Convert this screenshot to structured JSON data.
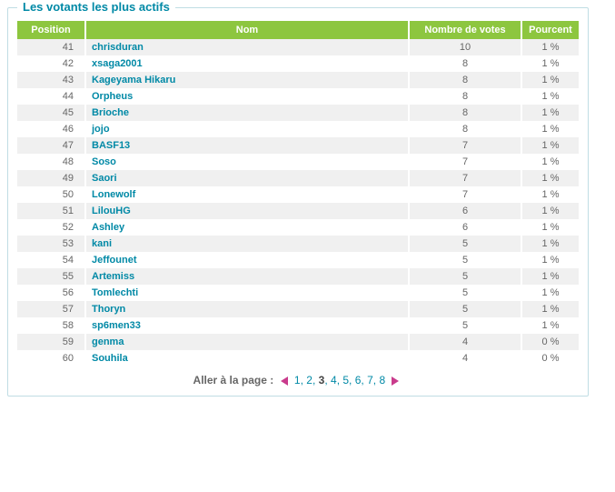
{
  "panel": {
    "title": "Les votants les plus actifs"
  },
  "table": {
    "headers": {
      "position": "Position",
      "name": "Nom",
      "votes": "Nombre de votes",
      "percent": "Pourcent"
    },
    "rows": [
      {
        "pos": "41",
        "name": "chrisduran",
        "votes": "10",
        "pct": "1 %"
      },
      {
        "pos": "42",
        "name": "xsaga2001",
        "votes": "8",
        "pct": "1 %"
      },
      {
        "pos": "43",
        "name": "Kageyama Hikaru",
        "votes": "8",
        "pct": "1 %"
      },
      {
        "pos": "44",
        "name": "Orpheus",
        "votes": "8",
        "pct": "1 %"
      },
      {
        "pos": "45",
        "name": "Brioche",
        "votes": "8",
        "pct": "1 %"
      },
      {
        "pos": "46",
        "name": "jojo",
        "votes": "8",
        "pct": "1 %"
      },
      {
        "pos": "47",
        "name": "BASF13",
        "votes": "7",
        "pct": "1 %"
      },
      {
        "pos": "48",
        "name": "Soso",
        "votes": "7",
        "pct": "1 %"
      },
      {
        "pos": "49",
        "name": "Saori",
        "votes": "7",
        "pct": "1 %"
      },
      {
        "pos": "50",
        "name": "Lonewolf",
        "votes": "7",
        "pct": "1 %"
      },
      {
        "pos": "51",
        "name": "LilouHG",
        "votes": "6",
        "pct": "1 %"
      },
      {
        "pos": "52",
        "name": "Ashley",
        "votes": "6",
        "pct": "1 %"
      },
      {
        "pos": "53",
        "name": "kani",
        "votes": "5",
        "pct": "1 %"
      },
      {
        "pos": "54",
        "name": "Jeffounet",
        "votes": "5",
        "pct": "1 %"
      },
      {
        "pos": "55",
        "name": "Artemiss",
        "votes": "5",
        "pct": "1 %"
      },
      {
        "pos": "56",
        "name": "Tomlechti",
        "votes": "5",
        "pct": "1 %"
      },
      {
        "pos": "57",
        "name": "Thoryn",
        "votes": "5",
        "pct": "1 %"
      },
      {
        "pos": "58",
        "name": "sp6men33",
        "votes": "5",
        "pct": "1 %"
      },
      {
        "pos": "59",
        "name": "genma",
        "votes": "4",
        "pct": "0 %"
      },
      {
        "pos": "60",
        "name": "Souhila",
        "votes": "4",
        "pct": "0 %"
      }
    ]
  },
  "pager": {
    "label": "Aller à la page :",
    "pages": [
      "1",
      "2",
      "3",
      "4",
      "5",
      "6",
      "7",
      "8"
    ],
    "current": "3"
  },
  "colors": {
    "header_bg": "#8dc63f",
    "link": "#0089a6",
    "border": "#c0dde4",
    "arrow": "#c93b8c"
  }
}
